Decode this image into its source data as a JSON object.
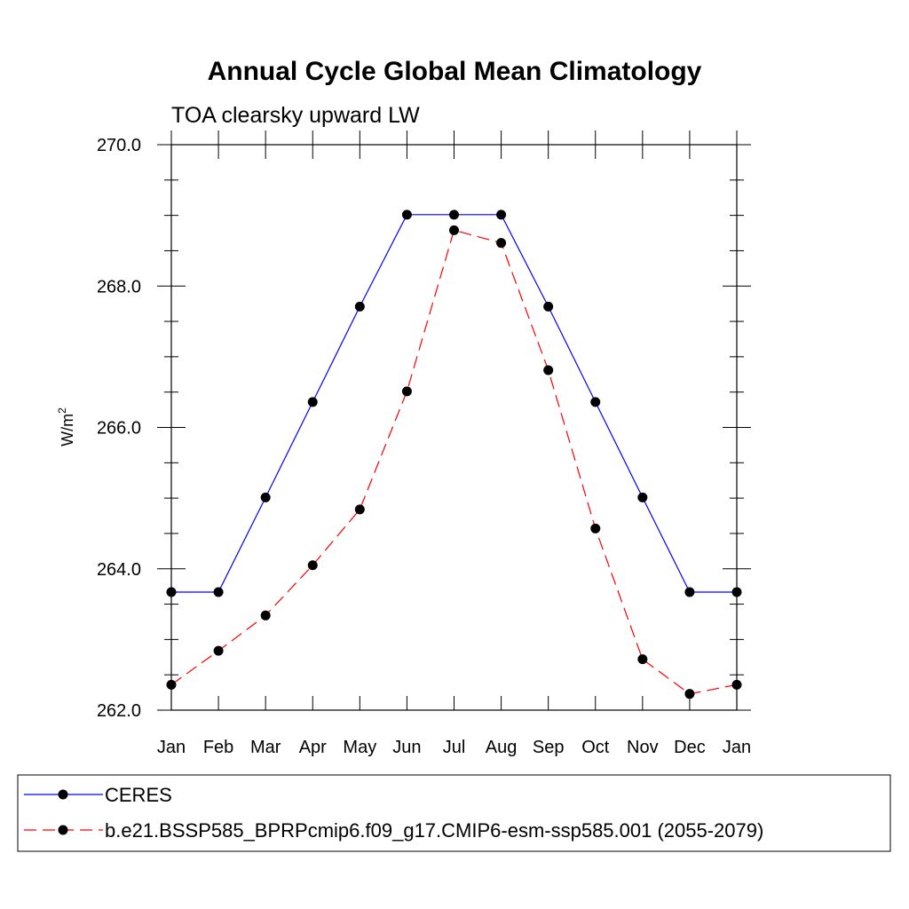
{
  "chart_data": {
    "type": "line",
    "title": "Annual Cycle Global Mean Climatology",
    "subtitle": "TOA clearsky upward LW",
    "ylabel_main": "W/m",
    "ylabel_sup": "2",
    "xlabel": "",
    "categories": [
      "Jan",
      "Feb",
      "Mar",
      "Apr",
      "May",
      "Jun",
      "Jul",
      "Aug",
      "Sep",
      "Oct",
      "Nov",
      "Dec",
      "Jan"
    ],
    "ylim": [
      262.0,
      270.0
    ],
    "yticks": [
      262.0,
      264.0,
      266.0,
      268.0,
      270.0
    ],
    "ytick_labels": [
      "262.0",
      "264.0",
      "266.0",
      "268.0",
      "270.0"
    ],
    "yminor_step": 0.5,
    "grid": false,
    "legend_position": "bottom",
    "series": [
      {
        "name": "CERES",
        "color": "#0000ff",
        "dash": "solid",
        "values": [
          263.67,
          263.67,
          265.01,
          266.36,
          267.71,
          269.01,
          269.01,
          269.01,
          267.71,
          266.36,
          265.01,
          263.67,
          263.67
        ]
      },
      {
        "name": "b.e21.BSSP585_BPRPcmip6.f09_g17.CMIP6-esm-ssp585.001 (2055-2079)",
        "color": "#ff0000",
        "dash": "dashed",
        "values": [
          262.36,
          262.84,
          263.34,
          264.05,
          264.84,
          266.51,
          268.79,
          268.61,
          266.81,
          264.57,
          262.72,
          262.23,
          262.36
        ]
      }
    ]
  }
}
